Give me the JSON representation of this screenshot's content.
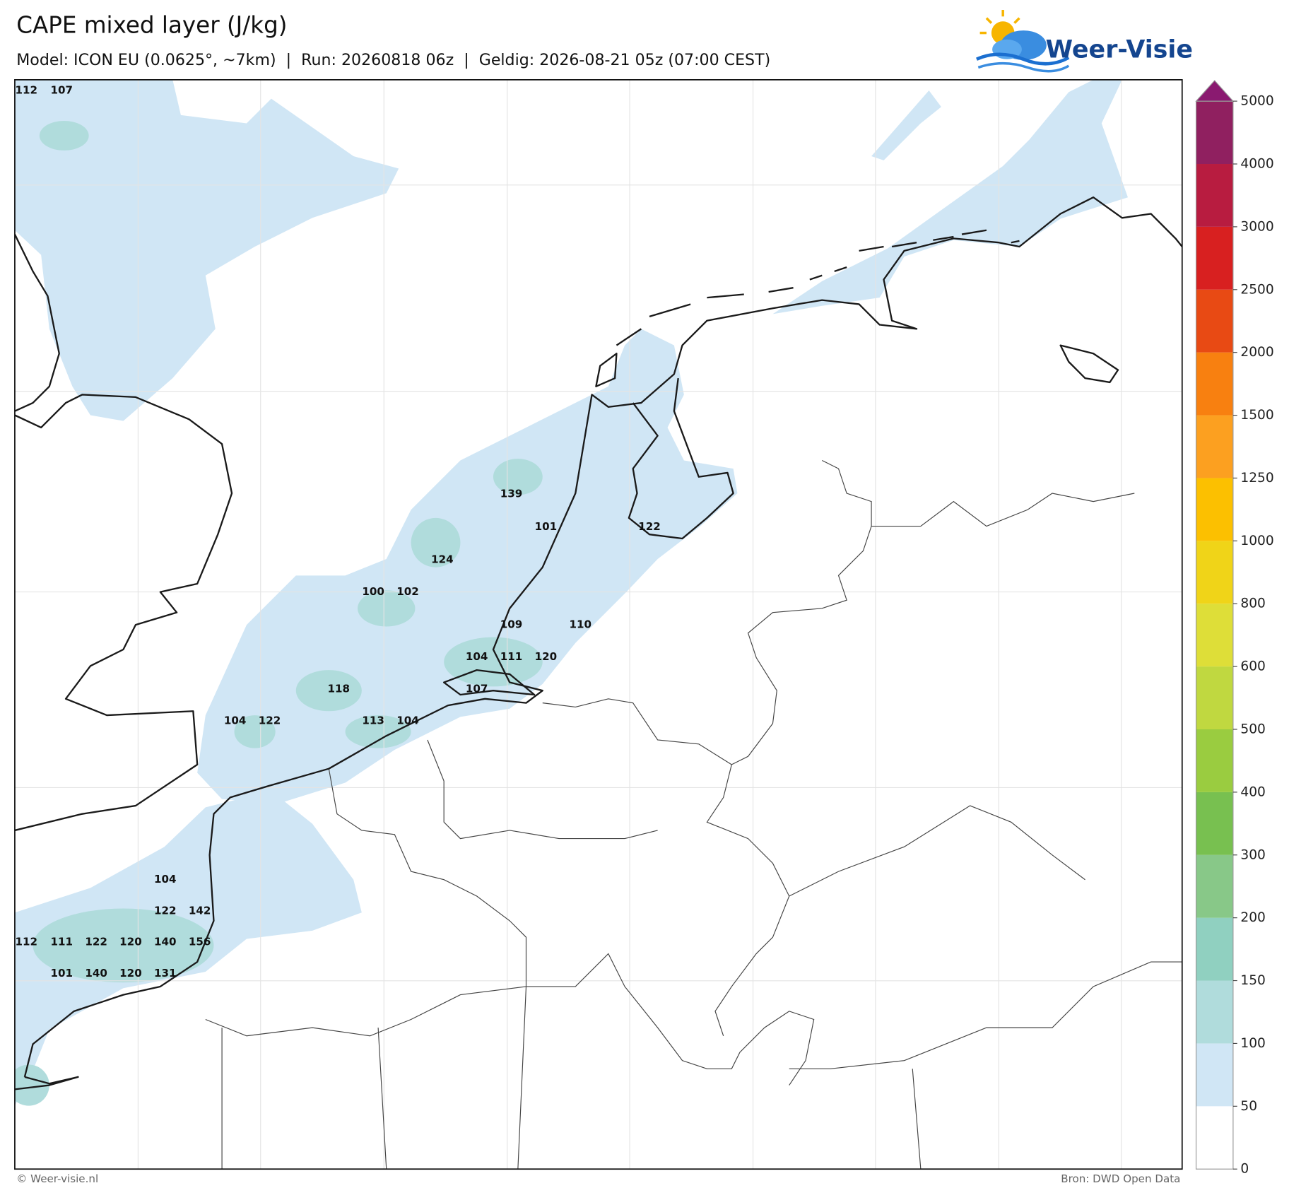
{
  "header": {
    "title": "CAPE mixed layer (J/kg)",
    "subtitle": "Model: ICON EU (0.0625°, ~7km)  |  Run: 20260818 06z  |  Geldig: 2026-08-21 05z (07:00 CEST)",
    "logo": "Weer-Visie"
  },
  "map": {
    "values": [
      112,
      107,
      139,
      101,
      122,
      124,
      100,
      102,
      109,
      110,
      104,
      111,
      120,
      107,
      118,
      104,
      122,
      113,
      104,
      104,
      122,
      142,
      112,
      111,
      122,
      120,
      140,
      156,
      101,
      140,
      120,
      131
    ]
  },
  "colorbar": {
    "levels": [
      0,
      50,
      100,
      150,
      200,
      300,
      400,
      500,
      600,
      800,
      1000,
      1250,
      1500,
      2000,
      2500,
      3000,
      4000,
      5000
    ],
    "colors": [
      "#ffffff",
      "#d0e6f5",
      "#b0dcdc",
      "#90d0c0",
      "#88c888",
      "#78c050",
      "#9acc40",
      "#c0d840",
      "#dede38",
      "#f0d418",
      "#fcc000",
      "#fca020",
      "#f88010",
      "#e84a14",
      "#d82020",
      "#b81c40",
      "#902060"
    ],
    "extend_color": "#8a1a70"
  },
  "footer": {
    "copyright": "© Weer-visie.nl",
    "source": "Bron: DWD Open Data"
  }
}
